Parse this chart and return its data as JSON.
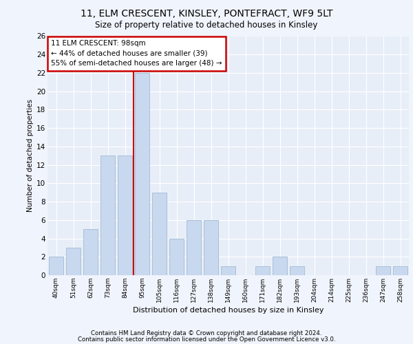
{
  "title1": "11, ELM CRESCENT, KINSLEY, PONTEFRACT, WF9 5LT",
  "title2": "Size of property relative to detached houses in Kinsley",
  "xlabel": "Distribution of detached houses by size in Kinsley",
  "ylabel": "Number of detached properties",
  "bar_color": "#c8d8ee",
  "bar_edge_color": "#aabfd8",
  "bg_color": "#e8eef8",
  "grid_color": "#ffffff",
  "categories": [
    "40sqm",
    "51sqm",
    "62sqm",
    "73sqm",
    "84sqm",
    "95sqm",
    "105sqm",
    "116sqm",
    "127sqm",
    "138sqm",
    "149sqm",
    "160sqm",
    "171sqm",
    "182sqm",
    "193sqm",
    "204sqm",
    "214sqm",
    "225sqm",
    "236sqm",
    "247sqm",
    "258sqm"
  ],
  "values": [
    2,
    3,
    5,
    13,
    13,
    22,
    9,
    4,
    6,
    6,
    1,
    0,
    1,
    2,
    1,
    0,
    0,
    0,
    0,
    1,
    1
  ],
  "annotation_text": "11 ELM CRESCENT: 98sqm\n← 44% of detached houses are smaller (39)\n55% of semi-detached houses are larger (48) →",
  "annotation_box_color": "#ffffff",
  "annotation_box_edge": "#cc0000",
  "vline_color": "#cc0000",
  "vline_pos": 4.5,
  "ylim": [
    0,
    26
  ],
  "yticks": [
    0,
    2,
    4,
    6,
    8,
    10,
    12,
    14,
    16,
    18,
    20,
    22,
    24,
    26
  ],
  "footer1": "Contains HM Land Registry data © Crown copyright and database right 2024.",
  "footer2": "Contains public sector information licensed under the Open Government Licence v3.0.",
  "fig_bg": "#f0f4fc"
}
